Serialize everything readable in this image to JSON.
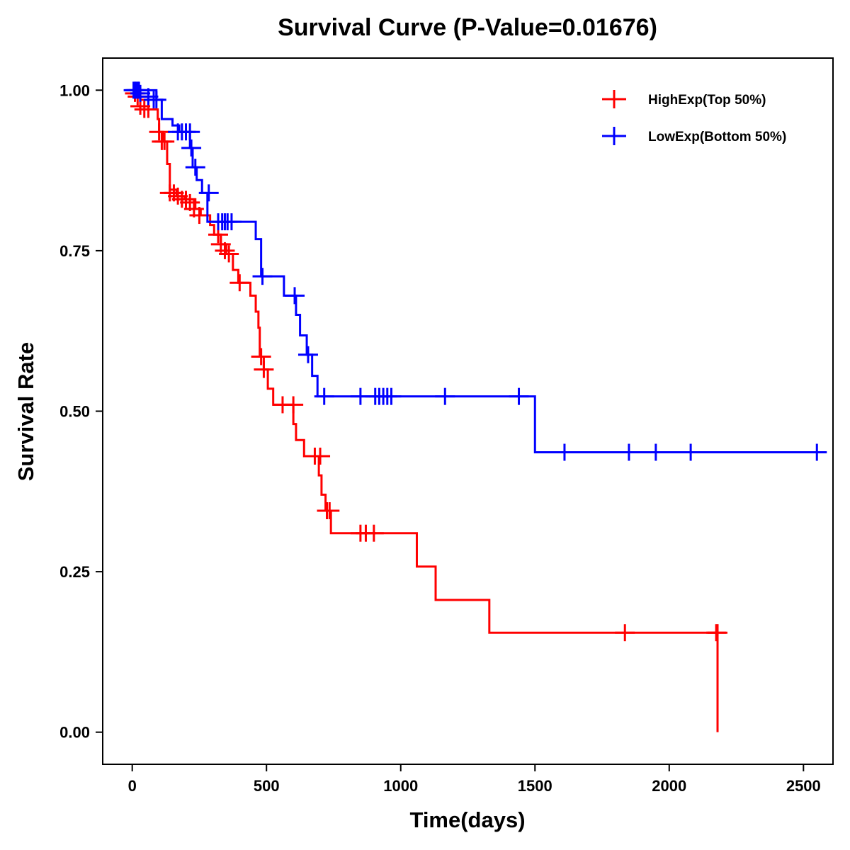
{
  "chart_data": {
    "type": "line",
    "subtype": "kaplan-meier-step",
    "title": "Survival Curve (P-Value=0.01676)",
    "xlabel": "Time(days)",
    "ylabel": "Survival Rate",
    "xlim": [
      -110,
      2610
    ],
    "ylim": [
      -0.05,
      1.05
    ],
    "xticks": [
      0,
      500,
      1000,
      1500,
      2000,
      2500
    ],
    "xtick_labels": [
      "0",
      "500",
      "1000",
      "1500",
      "2000",
      "2500"
    ],
    "yticks": [
      0,
      0.25,
      0.5,
      0.75,
      1.0
    ],
    "ytick_labels": [
      "0.00",
      "0.25",
      "0.50",
      "0.75",
      "1.00"
    ],
    "grid": false,
    "legend_position": "top-right",
    "series": [
      {
        "name": "HighExp(Top 50%)",
        "color": "#FF0000",
        "steps": [
          [
            0,
            1.0
          ],
          [
            30,
            0.985
          ],
          [
            60,
            0.97
          ],
          [
            95,
            0.955
          ],
          [
            100,
            0.935
          ],
          [
            115,
            0.92
          ],
          [
            130,
            0.885
          ],
          [
            140,
            0.845
          ],
          [
            165,
            0.835
          ],
          [
            195,
            0.83
          ],
          [
            235,
            0.815
          ],
          [
            255,
            0.805
          ],
          [
            290,
            0.79
          ],
          [
            305,
            0.775
          ],
          [
            330,
            0.76
          ],
          [
            350,
            0.745
          ],
          [
            375,
            0.72
          ],
          [
            395,
            0.7
          ],
          [
            440,
            0.68
          ],
          [
            460,
            0.655
          ],
          [
            470,
            0.63
          ],
          [
            475,
            0.585
          ],
          [
            490,
            0.565
          ],
          [
            505,
            0.535
          ],
          [
            525,
            0.51
          ],
          [
            600,
            0.48
          ],
          [
            610,
            0.455
          ],
          [
            640,
            0.43
          ],
          [
            695,
            0.4
          ],
          [
            705,
            0.37
          ],
          [
            720,
            0.345
          ],
          [
            740,
            0.31
          ],
          [
            1060,
            0.258
          ],
          [
            1130,
            0.206
          ],
          [
            1330,
            0.155
          ],
          [
            2180,
            0.0
          ]
        ],
        "end_time": 2180,
        "censor_times": [
          10,
          20,
          30,
          45,
          60,
          100,
          110,
          120,
          140,
          155,
          170,
          185,
          200,
          215,
          230,
          250,
          320,
          330,
          345,
          360,
          400,
          480,
          490,
          560,
          600,
          680,
          700,
          725,
          735,
          850,
          870,
          900,
          1835,
          2175,
          2180
        ],
        "censor_values": [
          0.995,
          0.99,
          0.975,
          0.97,
          0.97,
          0.935,
          0.92,
          0.92,
          0.84,
          0.84,
          0.835,
          0.83,
          0.83,
          0.825,
          0.815,
          0.805,
          0.775,
          0.76,
          0.75,
          0.745,
          0.7,
          0.585,
          0.565,
          0.51,
          0.51,
          0.43,
          0.43,
          0.345,
          0.345,
          0.31,
          0.31,
          0.31,
          0.155,
          0.155,
          0.155
        ]
      },
      {
        "name": "LowExp(Bottom 50%)",
        "color": "#0000FF",
        "steps": [
          [
            0,
            1.0
          ],
          [
            90,
            0.985
          ],
          [
            110,
            0.955
          ],
          [
            150,
            0.945
          ],
          [
            175,
            0.935
          ],
          [
            215,
            0.91
          ],
          [
            225,
            0.88
          ],
          [
            240,
            0.86
          ],
          [
            260,
            0.84
          ],
          [
            280,
            0.795
          ],
          [
            460,
            0.768
          ],
          [
            480,
            0.71
          ],
          [
            565,
            0.68
          ],
          [
            610,
            0.65
          ],
          [
            625,
            0.618
          ],
          [
            650,
            0.588
          ],
          [
            670,
            0.555
          ],
          [
            690,
            0.523
          ],
          [
            1500,
            0.436
          ]
        ],
        "end_time": 2560,
        "censor_times": [
          5,
          10,
          15,
          20,
          25,
          30,
          60,
          80,
          90,
          170,
          185,
          200,
          215,
          220,
          235,
          285,
          320,
          335,
          345,
          355,
          370,
          485,
          605,
          655,
          715,
          850,
          905,
          920,
          935,
          950,
          965,
          1165,
          1440,
          1610,
          1850,
          1950,
          2080,
          2550
        ],
        "censor_values": [
          1.0,
          1.0,
          1.0,
          1.0,
          1.0,
          0.995,
          0.99,
          0.985,
          0.985,
          0.935,
          0.935,
          0.935,
          0.935,
          0.91,
          0.88,
          0.84,
          0.795,
          0.795,
          0.795,
          0.795,
          0.795,
          0.71,
          0.68,
          0.588,
          0.523,
          0.523,
          0.523,
          0.523,
          0.523,
          0.523,
          0.523,
          0.523,
          0.523,
          0.436,
          0.436,
          0.436,
          0.436,
          0.436
        ]
      }
    ]
  }
}
